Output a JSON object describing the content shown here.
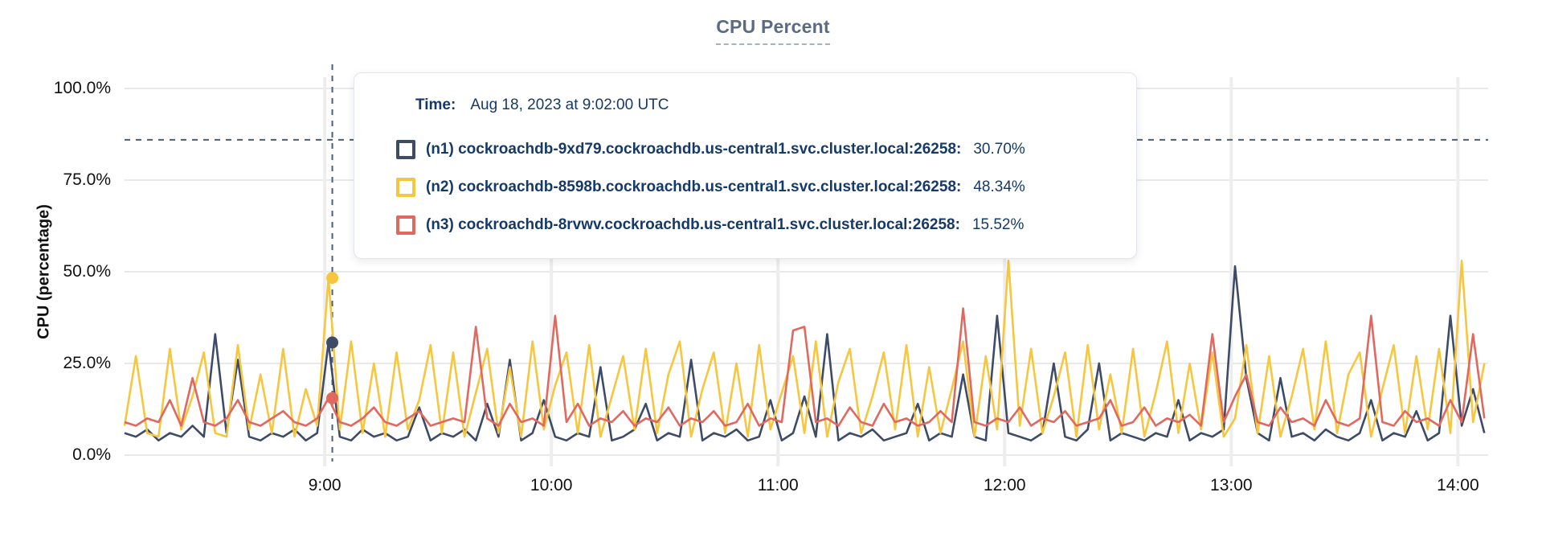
{
  "title": "CPU Percent",
  "y_axis": {
    "label": "CPU (percentage)",
    "ticks": [
      {
        "label": "0.0%",
        "value": 0
      },
      {
        "label": "25.0%",
        "value": 25
      },
      {
        "label": "50.0%",
        "value": 50
      },
      {
        "label": "75.0%",
        "value": 75
      },
      {
        "label": "100.0%",
        "value": 100
      }
    ]
  },
  "x_axis": {
    "ticks": [
      {
        "label": "9:00",
        "minute": 53
      },
      {
        "label": "10:00",
        "minute": 113
      },
      {
        "label": "11:00",
        "minute": 173
      },
      {
        "label": "12:00",
        "minute": 233
      },
      {
        "label": "13:00",
        "minute": 293
      },
      {
        "label": "14:00",
        "minute": 353
      }
    ]
  },
  "tooltip": {
    "time_label": "Time:",
    "time_value": "Aug 18, 2023 at 9:02:00 UTC",
    "rows": [
      {
        "node": "(n1) cockroachdb-9xd79.cockroachdb.us-central1.svc.cluster.local:26258:",
        "value": "30.70%"
      },
      {
        "node": "(n2) cockroachdb-8598b.cockroachdb.us-central1.svc.cluster.local:26258:",
        "value": "48.34%"
      },
      {
        "node": "(n3) cockroachdb-8rvwv.cockroachdb.us-central1.svc.cluster.local:26258:",
        "value": "15.52%"
      }
    ]
  },
  "colors": {
    "n1_navy": "#3e4b67",
    "n2_yellow": "#f6c63f",
    "n3_red": "#e0685f",
    "tooltip_text": "#163a67",
    "title_text": "#5b6b84",
    "gridline": "#e9e9e9",
    "crosshair": "#4a5e75"
  },
  "chart_data": {
    "type": "line",
    "title": "CPU Percent",
    "xlabel": "",
    "ylabel": "CPU (percentage)",
    "ylim": [
      0,
      100
    ],
    "grid": true,
    "legend_position": "tooltip-overlay",
    "x_unit": "minutes elapsed (chart spans approx 8:07 to 14:08 UTC, Aug 18 2023)",
    "x_min": 0,
    "x_max": 361,
    "x_step_minutes": 3,
    "hover": {
      "minute": 55,
      "time": "Aug 18, 2023 at 9:02:00 UTC",
      "cursor_percent": 86
    },
    "series": [
      {
        "name": "(n1) cockroachdb-9xd79.cockroachdb.us-central1.svc.cluster.local:26258",
        "color": "#3e4b67",
        "hover_value": 30.7,
        "values": [
          6,
          5,
          7,
          4,
          6,
          5,
          8,
          5,
          33,
          6,
          26,
          5,
          4,
          6,
          5,
          7,
          4,
          6,
          30.7,
          5,
          4,
          7,
          5,
          6,
          4,
          5,
          13,
          4,
          6,
          5,
          7,
          4,
          14,
          5,
          26,
          4,
          6,
          15,
          5,
          4,
          6,
          5,
          24,
          4,
          5,
          7,
          14,
          4,
          6,
          5,
          26,
          4,
          6,
          5,
          7,
          4,
          5,
          15,
          4,
          6,
          16,
          5,
          33,
          4,
          6,
          5,
          7,
          4,
          5,
          6,
          14,
          4,
          6,
          5,
          22,
          5,
          4,
          38,
          6,
          5,
          4,
          6,
          25,
          5,
          4,
          7,
          25,
          4,
          6,
          5,
          4,
          6,
          5,
          15,
          4,
          6,
          5,
          7,
          51.5,
          21,
          6,
          4,
          21,
          5,
          6,
          4,
          7,
          5,
          4,
          6,
          15,
          4,
          6,
          5,
          12,
          4,
          6,
          38,
          8,
          18,
          6
        ]
      },
      {
        "name": "(n2) cockroachdb-8598b.cockroachdb.us-central1.svc.cluster.local:26258",
        "color": "#f6c63f",
        "hover_value": 48.34,
        "values": [
          8,
          27,
          6,
          5,
          29,
          7,
          16,
          28,
          6,
          5,
          30,
          7,
          22,
          6,
          29,
          5,
          18,
          8,
          48.34,
          7,
          31,
          6,
          25,
          5,
          28,
          7,
          15,
          30,
          6,
          28,
          5,
          17,
          29,
          6,
          24,
          5,
          31,
          7,
          19,
          28,
          6,
          30,
          5,
          16,
          27,
          7,
          29,
          6,
          22,
          31,
          5,
          18,
          28,
          6,
          25,
          5,
          30,
          7,
          17,
          27,
          6,
          31,
          5,
          20,
          29,
          6,
          16,
          28,
          7,
          30,
          5,
          24,
          6,
          18,
          31,
          5,
          27,
          7,
          53,
          8,
          29,
          6,
          16,
          28,
          5,
          30,
          7,
          22,
          6,
          29,
          5,
          17,
          31,
          6,
          25,
          7,
          28,
          5,
          10,
          30,
          6,
          27,
          5,
          16,
          29,
          7,
          31,
          6,
          22,
          28,
          5,
          18,
          30,
          6,
          27,
          7,
          29,
          6,
          53,
          9,
          25
        ]
      },
      {
        "name": "(n3) cockroachdb-8rvwv.cockroachdb.us-central1.svc.cluster.local:26258",
        "color": "#e0685f",
        "hover_value": 15.52,
        "values": [
          9,
          8,
          10,
          9,
          15,
          8,
          21,
          9,
          8,
          10,
          15,
          9,
          8,
          10,
          12,
          9,
          8,
          10,
          15.52,
          9,
          8,
          10,
          13,
          9,
          8,
          10,
          12,
          8,
          9,
          10,
          9,
          35,
          10,
          8,
          14,
          9,
          10,
          8,
          38,
          9,
          14,
          8,
          10,
          9,
          12,
          8,
          10,
          9,
          13,
          8,
          10,
          9,
          12,
          8,
          9,
          14,
          8,
          10,
          9,
          34,
          35,
          9,
          10,
          8,
          13,
          9,
          8,
          14,
          9,
          10,
          8,
          9,
          12,
          9,
          40,
          9,
          8,
          10,
          9,
          13,
          8,
          10,
          9,
          12,
          8,
          9,
          10,
          15,
          8,
          9,
          13,
          8,
          10,
          9,
          11,
          8,
          33,
          9,
          16,
          22,
          9,
          8,
          13,
          9,
          10,
          8,
          15,
          9,
          8,
          10,
          38,
          9,
          8,
          12,
          9,
          10,
          8,
          15,
          9,
          33,
          10
        ]
      }
    ]
  }
}
